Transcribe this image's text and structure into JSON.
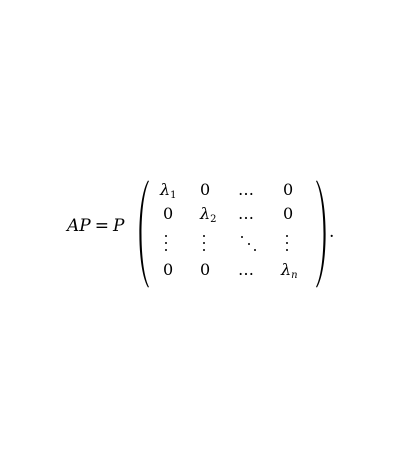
{
  "equation": {
    "lhs_A": "A",
    "lhs_P": "P",
    "equals": "=",
    "rhs_P": "P",
    "terminator": ".",
    "matrix": {
      "row1": {
        "c1_base": "λ",
        "c1_sub": "1",
        "c2": "0",
        "c3": "…",
        "c4": "0"
      },
      "row2": {
        "c1": "0",
        "c2_base": "λ",
        "c2_sub": "2",
        "c3": "…",
        "c4": "0"
      },
      "row3": {
        "c1": "⋮",
        "c2": "⋮",
        "c3": "⋱",
        "c4": "⋮"
      },
      "row4": {
        "c1": "0",
        "c2": "0",
        "c3": "…",
        "c4_base": "λ",
        "c4_sub": "n"
      }
    }
  }
}
